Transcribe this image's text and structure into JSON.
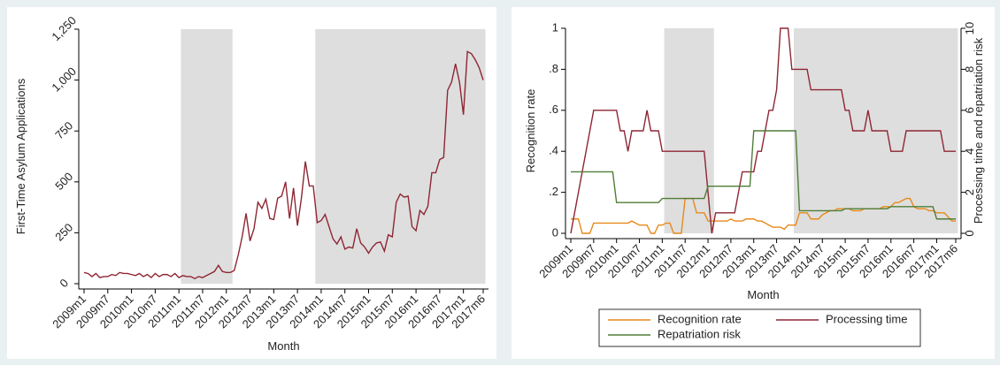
{
  "chart_data": [
    {
      "type": "line",
      "x_label": "Month",
      "y_label": "First-Time Asylum Applications",
      "categories": [
        "2009m1",
        null,
        null,
        null,
        null,
        null,
        "2009m7",
        null,
        null,
        null,
        null,
        null,
        "2010m1",
        null,
        null,
        null,
        null,
        null,
        "2010m7",
        null,
        null,
        null,
        null,
        null,
        "2011m1",
        null,
        null,
        null,
        null,
        null,
        "2011m7",
        null,
        null,
        null,
        null,
        null,
        "2012m1",
        null,
        null,
        null,
        null,
        null,
        "2012m7",
        null,
        null,
        null,
        null,
        null,
        "2013m1",
        null,
        null,
        null,
        null,
        null,
        "2013m7",
        null,
        null,
        null,
        null,
        null,
        "2014m1",
        null,
        null,
        null,
        null,
        null,
        "2014m7",
        null,
        null,
        null,
        null,
        null,
        "2015m1",
        null,
        null,
        null,
        null,
        null,
        "2015m7",
        null,
        null,
        null,
        null,
        null,
        "2016m1",
        null,
        null,
        null,
        null,
        null,
        "2016m7",
        null,
        null,
        null,
        null,
        null,
        "2017m1",
        null,
        null,
        null,
        null,
        "2017m6"
      ],
      "color": "#8e2633",
      "values": [
        55,
        50,
        35,
        50,
        30,
        35,
        35,
        45,
        40,
        55,
        50,
        50,
        45,
        40,
        50,
        35,
        45,
        30,
        50,
        35,
        45,
        45,
        35,
        50,
        30,
        40,
        35,
        35,
        25,
        35,
        30,
        40,
        50,
        60,
        90,
        60,
        55,
        55,
        65,
        140,
        230,
        345,
        210,
        270,
        400,
        370,
        415,
        320,
        315,
        420,
        430,
        500,
        320,
        470,
        285,
        420,
        600,
        480,
        480,
        300,
        310,
        340,
        280,
        220,
        195,
        230,
        170,
        180,
        175,
        270,
        200,
        180,
        150,
        180,
        200,
        205,
        160,
        240,
        230,
        400,
        440,
        425,
        430,
        280,
        260,
        360,
        340,
        380,
        545,
        545,
        610,
        620,
        950,
        990,
        1080,
        990,
        830,
        1140,
        1130,
        1100,
        1060,
        1000
      ],
      "shading": {
        "color": "#dedede",
        "values": [
          null,
          null,
          null,
          null,
          null,
          null,
          null,
          null,
          null,
          null,
          null,
          null,
          null,
          null,
          null,
          null,
          null,
          null,
          null,
          null,
          null,
          null,
          null,
          null,
          null,
          1250,
          1250,
          1250,
          1250,
          1250,
          1250,
          1250,
          1250,
          1250,
          1250,
          1250,
          1250,
          1250,
          null,
          null,
          null,
          null,
          null,
          null,
          null,
          null,
          null,
          null,
          null,
          null,
          null,
          null,
          null,
          null,
          null,
          null,
          null,
          null,
          null,
          1250,
          1250,
          1250,
          1250,
          1250,
          1250,
          1250,
          1250,
          1250,
          1250,
          1250,
          1250,
          1250,
          1250,
          1250,
          1250,
          1250,
          1250,
          1250,
          1250,
          1250,
          1250,
          1250,
          1250,
          1250,
          1250,
          1250,
          1250,
          1250,
          1250,
          1250,
          1250,
          1250,
          1250,
          1250,
          1250,
          1250,
          1250,
          1250,
          1250,
          1250,
          1250,
          1250
        ]
      },
      "ylim": [
        0,
        1250
      ],
      "yticks": [
        0,
        250,
        500,
        750,
        {
          "value": 1000,
          "label": "1,000"
        },
        {
          "value": 1250,
          "label": "1,250"
        }
      ]
    },
    {
      "type": "line",
      "x_label": "Month",
      "y_label": "Recognition rate",
      "y2_label": "Processing time and repatriation risk",
      "legend": "bottom",
      "categories": [
        "2009m1",
        null,
        null,
        null,
        null,
        null,
        "2009m7",
        null,
        null,
        null,
        null,
        null,
        "2010m1",
        null,
        null,
        null,
        null,
        null,
        "2010m7",
        null,
        null,
        null,
        null,
        null,
        "2011m1",
        null,
        null,
        null,
        null,
        null,
        "2011m7",
        null,
        null,
        null,
        null,
        null,
        "2012m1",
        null,
        null,
        null,
        null,
        null,
        "2012m7",
        null,
        null,
        null,
        null,
        null,
        "2013m1",
        null,
        null,
        null,
        null,
        null,
        "2013m7",
        null,
        null,
        null,
        null,
        null,
        "2014m1",
        null,
        null,
        null,
        null,
        null,
        "2014m7",
        null,
        null,
        null,
        null,
        null,
        "2015m1",
        null,
        null,
        null,
        null,
        null,
        "2015m7",
        null,
        null,
        null,
        null,
        null,
        "2016m1",
        null,
        null,
        null,
        null,
        null,
        "2016m7",
        null,
        null,
        null,
        null,
        null,
        "2017m1",
        null,
        null,
        null,
        null,
        "2017m6"
      ],
      "series": [
        {
          "name": "Recognition rate",
          "color": "#e8891a",
          "axis": "y",
          "values": [
            0.07,
            0.07,
            0.07,
            0,
            0,
            0,
            0.05,
            0.05,
            0.05,
            0.05,
            0.05,
            0.05,
            0.05,
            0.05,
            0.05,
            0.05,
            0.06,
            0.05,
            0.04,
            0.04,
            0.04,
            0,
            0,
            0.04,
            0.04,
            0.05,
            0.05,
            0,
            0,
            0,
            0.17,
            0.17,
            0.17,
            0.1,
            0.1,
            0.1,
            0.06,
            0.06,
            0.06,
            0.06,
            0.06,
            0.06,
            0.07,
            0.06,
            0.06,
            0.06,
            0.07,
            0.07,
            0.07,
            0.06,
            0.06,
            0.05,
            0.04,
            0.03,
            0.03,
            0.03,
            0.02,
            0.04,
            0.04,
            0.04,
            0.1,
            0.1,
            0.1,
            0.07,
            0.07,
            0.07,
            0.09,
            0.1,
            0.11,
            0.11,
            0.12,
            0.12,
            0.12,
            0.12,
            0.11,
            0.11,
            0.11,
            0.12,
            0.12,
            0.12,
            0.12,
            0.12,
            0.13,
            0.13,
            0.13,
            0.15,
            0.15,
            0.16,
            0.17,
            0.17,
            0.13,
            0.12,
            0.12,
            0.12,
            0.11,
            0.11,
            0.1,
            0.1,
            0.1,
            0.08,
            0.06,
            0.06
          ]
        },
        {
          "name": "Processing time",
          "color": "#8e2633",
          "axis": "y2",
          "values": [
            0,
            1,
            2,
            3,
            4,
            5,
            6,
            6,
            6,
            6,
            6,
            6,
            6,
            5,
            5,
            4,
            5,
            5,
            5,
            5,
            6,
            5,
            5,
            5,
            4,
            4,
            4,
            4,
            4,
            4,
            4,
            4,
            4,
            4,
            4,
            4,
            2,
            0,
            1,
            1,
            1,
            1,
            1,
            1,
            2,
            3,
            3,
            3,
            3,
            4,
            4,
            5,
            6,
            6,
            7,
            10,
            10,
            10,
            8,
            8,
            8,
            8,
            8,
            7,
            7,
            7,
            7,
            7,
            7,
            7,
            7,
            7,
            6,
            6,
            5,
            5,
            5,
            5,
            6,
            5,
            5,
            5,
            5,
            5,
            4,
            4,
            4,
            4,
            5,
            5,
            5,
            5,
            5,
            5,
            5,
            5,
            5,
            5,
            4,
            4,
            4,
            4
          ]
        },
        {
          "name": "Repatriation risk",
          "color": "#4f7d37",
          "axis": "y2",
          "values": [
            3,
            3,
            3,
            3,
            3,
            3,
            3,
            3,
            3,
            3,
            3,
            3,
            1.5,
            1.5,
            1.5,
            1.5,
            1.5,
            1.5,
            1.5,
            1.5,
            1.5,
            1.5,
            1.5,
            1.5,
            1.7,
            1.7,
            1.7,
            1.7,
            1.7,
            1.7,
            1.7,
            1.7,
            1.7,
            1.7,
            1.7,
            1.7,
            2.3,
            2.3,
            2.3,
            2.3,
            2.3,
            2.3,
            2.3,
            2.3,
            2.3,
            2.3,
            2.3,
            2.3,
            5,
            5,
            5,
            5,
            5,
            5,
            5,
            5,
            5,
            5,
            5,
            5,
            1.1,
            1.1,
            1.1,
            1.1,
            1.1,
            1.1,
            1.1,
            1.1,
            1.1,
            1.1,
            1.1,
            1.1,
            1.2,
            1.2,
            1.2,
            1.2,
            1.2,
            1.2,
            1.2,
            1.2,
            1.2,
            1.2,
            1.2,
            1.2,
            1.3,
            1.3,
            1.3,
            1.3,
            1.3,
            1.3,
            1.3,
            1.3,
            1.3,
            1.3,
            1.3,
            1.3,
            0.7,
            0.7,
            0.7,
            0.7,
            0.7,
            0.7
          ]
        }
      ],
      "shading": {
        "color": "#dedede",
        "values": [
          null,
          null,
          null,
          null,
          null,
          null,
          null,
          null,
          null,
          null,
          null,
          null,
          null,
          null,
          null,
          null,
          null,
          null,
          null,
          null,
          null,
          null,
          null,
          null,
          null,
          1,
          1,
          1,
          1,
          1,
          1,
          1,
          1,
          1,
          1,
          1,
          1,
          1,
          null,
          null,
          null,
          null,
          null,
          null,
          null,
          null,
          null,
          null,
          null,
          null,
          null,
          null,
          null,
          null,
          null,
          null,
          null,
          null,
          null,
          1,
          1,
          1,
          1,
          1,
          1,
          1,
          1,
          1,
          1,
          1,
          1,
          1,
          1,
          1,
          1,
          1,
          1,
          1,
          1,
          1,
          1,
          1,
          1,
          1,
          1,
          1,
          1,
          1,
          1,
          1,
          1,
          1,
          1,
          1,
          1,
          1,
          1,
          1,
          1,
          1,
          1,
          1
        ]
      },
      "ylim": [
        0,
        1
      ],
      "yticks": [
        0,
        {
          "value": 0.2,
          "label": ".2"
        },
        {
          "value": 0.4,
          "label": ".4"
        },
        {
          "value": 0.6,
          "label": ".6"
        },
        {
          "value": 0.8,
          "label": ".8"
        },
        1
      ],
      "y2lim": [
        0,
        10
      ],
      "y2ticks": [
        0,
        2,
        4,
        6,
        8,
        10
      ]
    }
  ]
}
